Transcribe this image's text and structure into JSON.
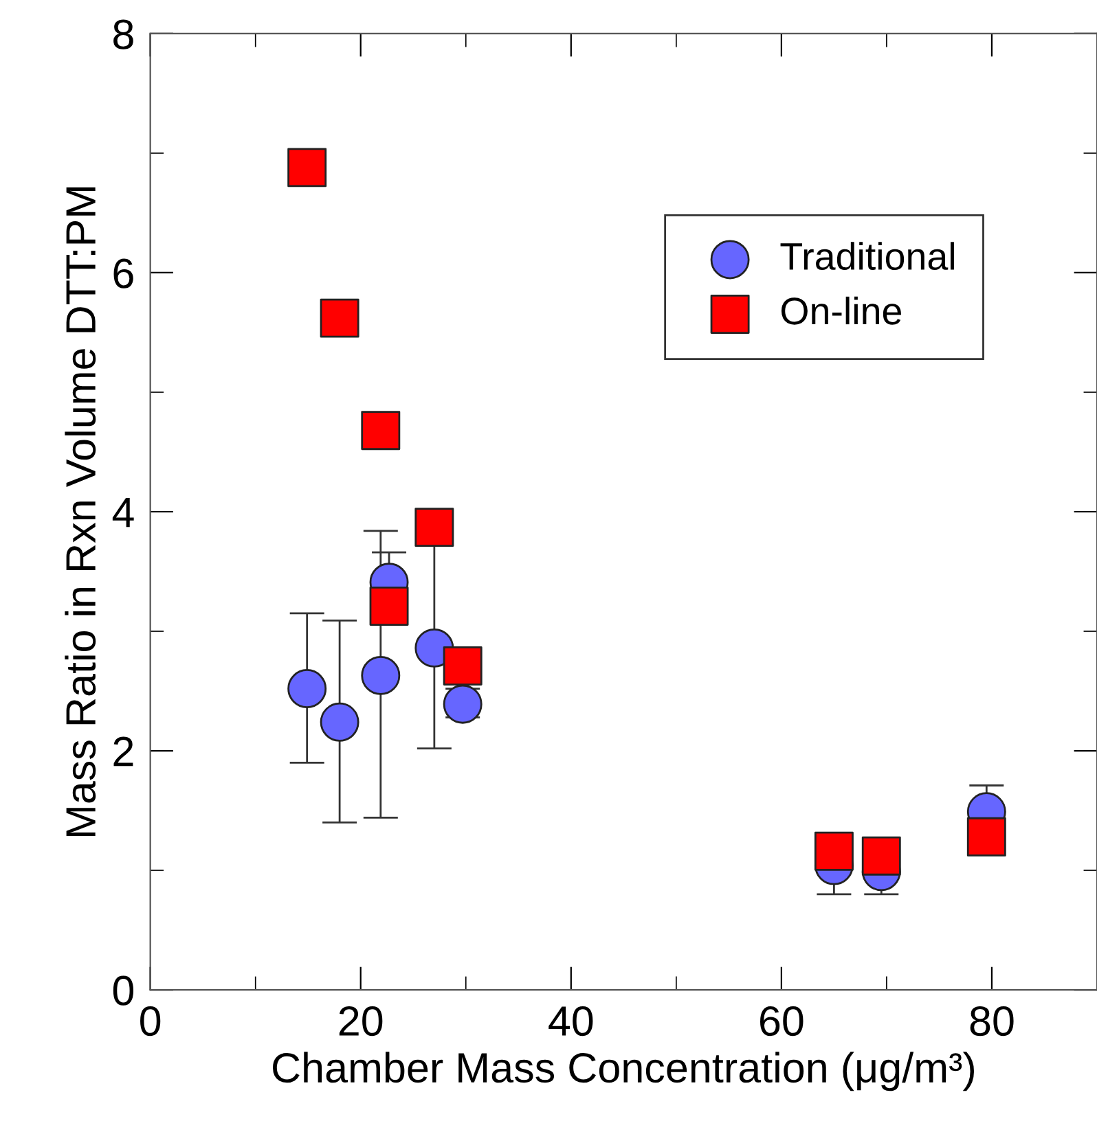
{
  "chart_data": {
    "type": "scatter",
    "xlabel": "Chamber Mass Concentration (μg/m³)",
    "ylabel": "Mass Ratio in Rxn Volume DTT:PM",
    "xlim": [
      0,
      90
    ],
    "ylim": [
      0,
      8
    ],
    "xticks": [
      0,
      {
        "value": 10,
        "label": null
      },
      20,
      {
        "value": 30,
        "label": null
      },
      40,
      {
        "value": 50,
        "label": null
      },
      60,
      {
        "value": 70,
        "label": null
      },
      80
    ],
    "yticks": [
      0,
      {
        "value": 1,
        "label": null
      },
      2,
      {
        "value": 3,
        "label": null
      },
      4,
      {
        "value": 5,
        "label": null
      },
      6,
      {
        "value": 7,
        "label": null
      },
      8
    ],
    "grid": false,
    "legend": "top right",
    "series": [
      {
        "name": "Traditional",
        "color": "#6666ff",
        "marker": "circle",
        "x": [
          14.9,
          18.0,
          21.9,
          22.7,
          27.0,
          29.7,
          65.0,
          69.5,
          79.5
        ],
        "values": [
          2.52,
          2.24,
          2.63,
          3.41,
          2.86,
          2.39,
          1.04,
          0.99,
          1.49
        ],
        "errors": [
          [
            1.9,
            3.15
          ],
          [
            1.4,
            3.09
          ],
          [
            1.44,
            3.84
          ],
          [
            3.41,
            3.66
          ],
          [
            2.02,
            3.72
          ],
          [
            2.28,
            2.52
          ],
          [
            0.8,
            1.28
          ],
          [
            0.8,
            0.99
          ],
          [
            1.49,
            1.71
          ]
        ]
      },
      {
        "name": "On-line",
        "color": "#ff0000",
        "marker": "square",
        "x": [
          14.9,
          18.0,
          21.9,
          22.7,
          27.0,
          29.7,
          65.0,
          69.5,
          79.5
        ],
        "values": [
          6.88,
          5.62,
          4.68,
          3.21,
          3.87,
          2.71,
          1.16,
          1.12,
          1.28
        ]
      }
    ]
  }
}
